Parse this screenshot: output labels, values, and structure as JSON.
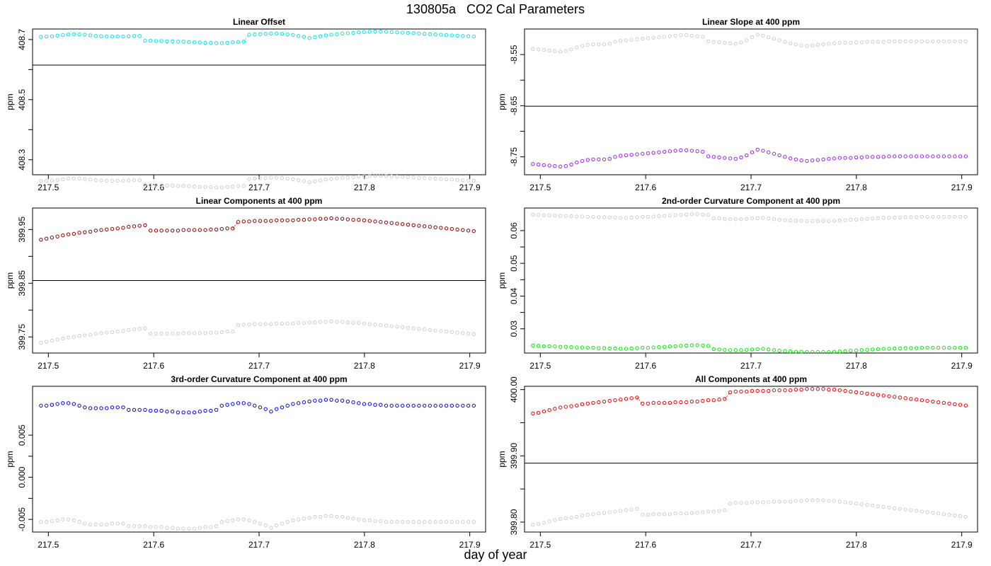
{
  "figure": {
    "title": "130805a   CO2 Cal Parameters",
    "xlabel": "day of year"
  },
  "chart_data": [
    {
      "type": "scatter",
      "title": "Linear Offset",
      "ylabel": "ppm",
      "xlim": [
        217.485,
        217.915
      ],
      "ylim": [
        408.25,
        408.735
      ],
      "x_ticks": [
        "217.5",
        "217.6",
        "217.7",
        "217.8",
        "217.9"
      ],
      "y_ticks": [
        "408.3",
        "408.5",
        "408.7"
      ],
      "hline": 408.615,
      "main_color": "#00e5ee",
      "offset": -0.48
    },
    {
      "type": "scatter",
      "title": "Linear Slope at 400 ppm",
      "ylabel": "ppm",
      "xlim": [
        217.485,
        217.915
      ],
      "ylim": [
        -8.785,
        -8.5
      ],
      "x_ticks": [
        "217.5",
        "217.6",
        "217.7",
        "217.8",
        "217.9"
      ],
      "y_ticks": [
        "-8.55",
        "-8.65",
        "-8.75"
      ],
      "hline": -8.651,
      "main_color": "#a020f0",
      "offset": 0.225
    },
    {
      "type": "scatter",
      "title": "Linear Components at 400 ppm",
      "ylabel": "ppm",
      "xlim": [
        217.485,
        217.915
      ],
      "ylim": [
        399.72,
        399.99
      ],
      "x_ticks": [
        "217.5",
        "217.6",
        "217.7",
        "217.8",
        "217.9"
      ],
      "y_ticks": [
        "399.75",
        "399.85",
        "399.95"
      ],
      "hline": 399.855,
      "main_color": "#8b0000",
      "offset": -0.192
    },
    {
      "type": "scatter",
      "title": "2nd-order Curvature Component at 400 ppm",
      "ylabel": "ppm",
      "xlim": [
        217.485,
        217.915
      ],
      "ylim": [
        0.0226,
        0.0669
      ],
      "x_ticks": [
        "217.5",
        "217.6",
        "217.7",
        "217.8",
        "217.9"
      ],
      "y_ticks": [
        "0.03",
        "0.04",
        "0.05",
        "0.06"
      ],
      "main_color": "#00ee00",
      "offset": 0.04
    },
    {
      "type": "scatter",
      "title": "3rd-order Curvature Component at 400 ppm",
      "ylabel": "ppm",
      "xlim": [
        217.485,
        217.915
      ],
      "ylim": [
        -0.0065,
        0.0108
      ],
      "x_ticks": [
        "217.5",
        "217.6",
        "217.7",
        "217.8",
        "217.9"
      ],
      "y_ticks": [
        "-0.005",
        "0.000",
        "0.005"
      ],
      "y_ticks_values": [
        -0.005,
        0,
        0.005
      ],
      "main_color": "#0000ee",
      "offset": -0.0138
    },
    {
      "type": "scatter",
      "title": "All Components at 400 ppm",
      "ylabel": "ppm",
      "xlim": [
        217.485,
        217.915
      ],
      "ylim": [
        399.785,
        400.005
      ],
      "x_ticks": [
        "217.5",
        "217.6",
        "217.7",
        "217.8",
        "217.9"
      ],
      "y_ticks": [
        "399.80",
        "399.90",
        "400.00"
      ],
      "hline": 399.889,
      "main_color": "#ee0000",
      "offset": -0.168
    }
  ],
  "series_data": {
    "x_start": 217.493,
    "x_step": 0.0052,
    "count": 80,
    "main_series": [
      [
        408.709,
        408.71,
        408.711,
        408.713,
        408.715,
        408.717,
        408.718,
        408.717,
        408.716,
        408.714,
        408.712,
        408.711,
        408.71,
        408.71,
        408.71,
        408.71,
        408.711,
        408.712,
        408.712,
        408.696,
        408.696,
        408.695,
        408.695,
        408.694,
        408.694,
        408.693,
        408.693,
        408.692,
        408.691,
        408.69,
        408.689,
        408.689,
        408.688,
        408.688,
        408.689,
        408.691,
        408.692,
        408.693,
        408.716,
        408.717,
        408.718,
        408.719,
        408.72,
        408.72,
        408.719,
        408.717,
        408.715,
        408.712,
        408.709,
        408.705,
        408.708,
        408.711,
        408.714,
        408.716,
        408.718,
        408.72,
        408.721,
        408.722,
        408.724,
        408.725,
        408.726,
        408.727,
        408.727,
        408.726,
        408.725,
        408.724,
        408.723,
        408.722,
        408.721,
        408.72,
        408.719,
        408.718,
        408.717,
        408.716,
        408.715,
        408.714,
        408.713,
        408.712,
        408.711,
        408.71
      ],
      [
        -8.764,
        -8.765,
        -8.766,
        -8.767,
        -8.768,
        -8.769,
        -8.768,
        -8.765,
        -8.761,
        -8.758,
        -8.756,
        -8.755,
        -8.755,
        -8.755,
        -8.754,
        -8.75,
        -8.748,
        -8.747,
        -8.746,
        -8.745,
        -8.744,
        -8.743,
        -8.742,
        -8.741,
        -8.74,
        -8.739,
        -8.738,
        -8.737,
        -8.737,
        -8.738,
        -8.739,
        -8.74,
        -8.749,
        -8.75,
        -8.751,
        -8.752,
        -8.753,
        -8.754,
        -8.751,
        -8.747,
        -8.741,
        -8.736,
        -8.738,
        -8.741,
        -8.744,
        -8.747,
        -8.75,
        -8.753,
        -8.755,
        -8.757,
        -8.758,
        -8.757,
        -8.756,
        -8.755,
        -8.754,
        -8.753,
        -8.752,
        -8.752,
        -8.752,
        -8.751,
        -8.751,
        -8.75,
        -8.75,
        -8.75,
        -8.75,
        -8.749,
        -8.749,
        -8.749,
        -8.749,
        -8.749,
        -8.749,
        -8.749,
        -8.749,
        -8.749,
        -8.749,
        -8.749,
        -8.749,
        -8.749,
        -8.749,
        -8.749
      ],
      [
        399.931,
        399.933,
        399.935,
        399.937,
        399.939,
        399.941,
        399.942,
        399.944,
        399.945,
        399.946,
        399.948,
        399.949,
        399.95,
        399.951,
        399.952,
        399.953,
        399.955,
        399.956,
        399.957,
        399.958,
        399.948,
        399.948,
        399.948,
        399.948,
        399.948,
        399.948,
        399.949,
        399.949,
        399.949,
        399.949,
        399.949,
        399.95,
        399.95,
        399.951,
        399.952,
        399.952,
        399.964,
        399.965,
        399.965,
        399.966,
        399.966,
        399.966,
        399.966,
        399.967,
        399.967,
        399.967,
        399.967,
        399.968,
        399.968,
        399.969,
        399.969,
        399.97,
        399.97,
        399.971,
        399.97,
        399.97,
        399.969,
        399.968,
        399.968,
        399.967,
        399.966,
        399.965,
        399.964,
        399.963,
        399.962,
        399.961,
        399.96,
        399.959,
        399.958,
        399.957,
        399.956,
        399.955,
        399.954,
        399.953,
        399.952,
        399.951,
        399.95,
        399.949,
        399.948,
        399.947
      ],
      [
        0.0249,
        0.0248,
        0.0247,
        0.0247,
        0.0246,
        0.0245,
        0.0245,
        0.0244,
        0.0243,
        0.0243,
        0.0242,
        0.0242,
        0.0241,
        0.0241,
        0.024,
        0.024,
        0.0239,
        0.0239,
        0.024,
        0.0241,
        0.0242,
        0.0242,
        0.0243,
        0.0244,
        0.0245,
        0.0246,
        0.0247,
        0.0248,
        0.0249,
        0.025,
        0.025,
        0.0249,
        0.0248,
        0.0238,
        0.0237,
        0.0236,
        0.0235,
        0.0235,
        0.0235,
        0.0236,
        0.0237,
        0.0238,
        0.0239,
        0.0237,
        0.0235,
        0.0233,
        0.0232,
        0.0231,
        0.023,
        0.023,
        0.0229,
        0.0229,
        0.0229,
        0.0229,
        0.0229,
        0.023,
        0.0231,
        0.0232,
        0.0233,
        0.0234,
        0.0235,
        0.0236,
        0.0237,
        0.0238,
        0.0239,
        0.0239,
        0.024,
        0.024,
        0.0241,
        0.0241,
        0.0241,
        0.0242,
        0.0242,
        0.0242,
        0.0242,
        0.0242,
        0.0242,
        0.0242,
        0.0242,
        0.0242
      ],
      [
        0.0085,
        0.0085,
        0.0086,
        0.0087,
        0.0088,
        0.0088,
        0.0087,
        0.0085,
        0.0083,
        0.0082,
        0.0082,
        0.0082,
        0.0082,
        0.0083,
        0.0083,
        0.0083,
        0.008,
        0.008,
        0.008,
        0.008,
        0.0079,
        0.0079,
        0.0079,
        0.0078,
        0.0078,
        0.0077,
        0.0077,
        0.0077,
        0.0077,
        0.0078,
        0.0079,
        0.0079,
        0.008,
        0.0085,
        0.0086,
        0.0087,
        0.0088,
        0.0088,
        0.0087,
        0.0085,
        0.0083,
        0.0081,
        0.0078,
        0.0081,
        0.0083,
        0.0085,
        0.0087,
        0.0088,
        0.0089,
        0.009,
        0.0091,
        0.0091,
        0.0092,
        0.0092,
        0.0091,
        0.0091,
        0.009,
        0.0089,
        0.0088,
        0.0087,
        0.0087,
        0.0086,
        0.0086,
        0.0085,
        0.0085,
        0.0085,
        0.0085,
        0.0085,
        0.0085,
        0.0085,
        0.0085,
        0.0085,
        0.0085,
        0.0085,
        0.0085,
        0.0085,
        0.0085,
        0.0085,
        0.0085,
        0.0085
      ],
      [
        399.964,
        399.965,
        399.967,
        399.969,
        399.971,
        399.973,
        399.974,
        399.975,
        399.976,
        399.978,
        399.979,
        399.98,
        399.981,
        399.982,
        399.983,
        399.984,
        399.985,
        399.986,
        399.987,
        399.988,
        399.979,
        399.979,
        399.98,
        399.98,
        399.98,
        399.98,
        399.981,
        399.981,
        399.981,
        399.982,
        399.982,
        399.983,
        399.984,
        399.984,
        399.985,
        399.986,
        399.996,
        399.997,
        399.997,
        399.997,
        399.998,
        399.998,
        399.998,
        399.998,
        399.999,
        399.999,
        399.999,
        399.999,
        400.0,
        400.0,
        400.001,
        400.001,
        400.001,
        400.001,
        400.0,
        400.0,
        399.999,
        399.998,
        399.997,
        399.996,
        399.995,
        399.994,
        399.993,
        399.992,
        399.991,
        399.99,
        399.989,
        399.988,
        399.987,
        399.986,
        399.985,
        399.984,
        399.983,
        399.982,
        399.981,
        399.98,
        399.979,
        399.978,
        399.977,
        399.976
      ]
    ]
  },
  "colors": {
    "axis": "#000000",
    "hline": "#000000",
    "grey_series": "#c8c8c8"
  }
}
